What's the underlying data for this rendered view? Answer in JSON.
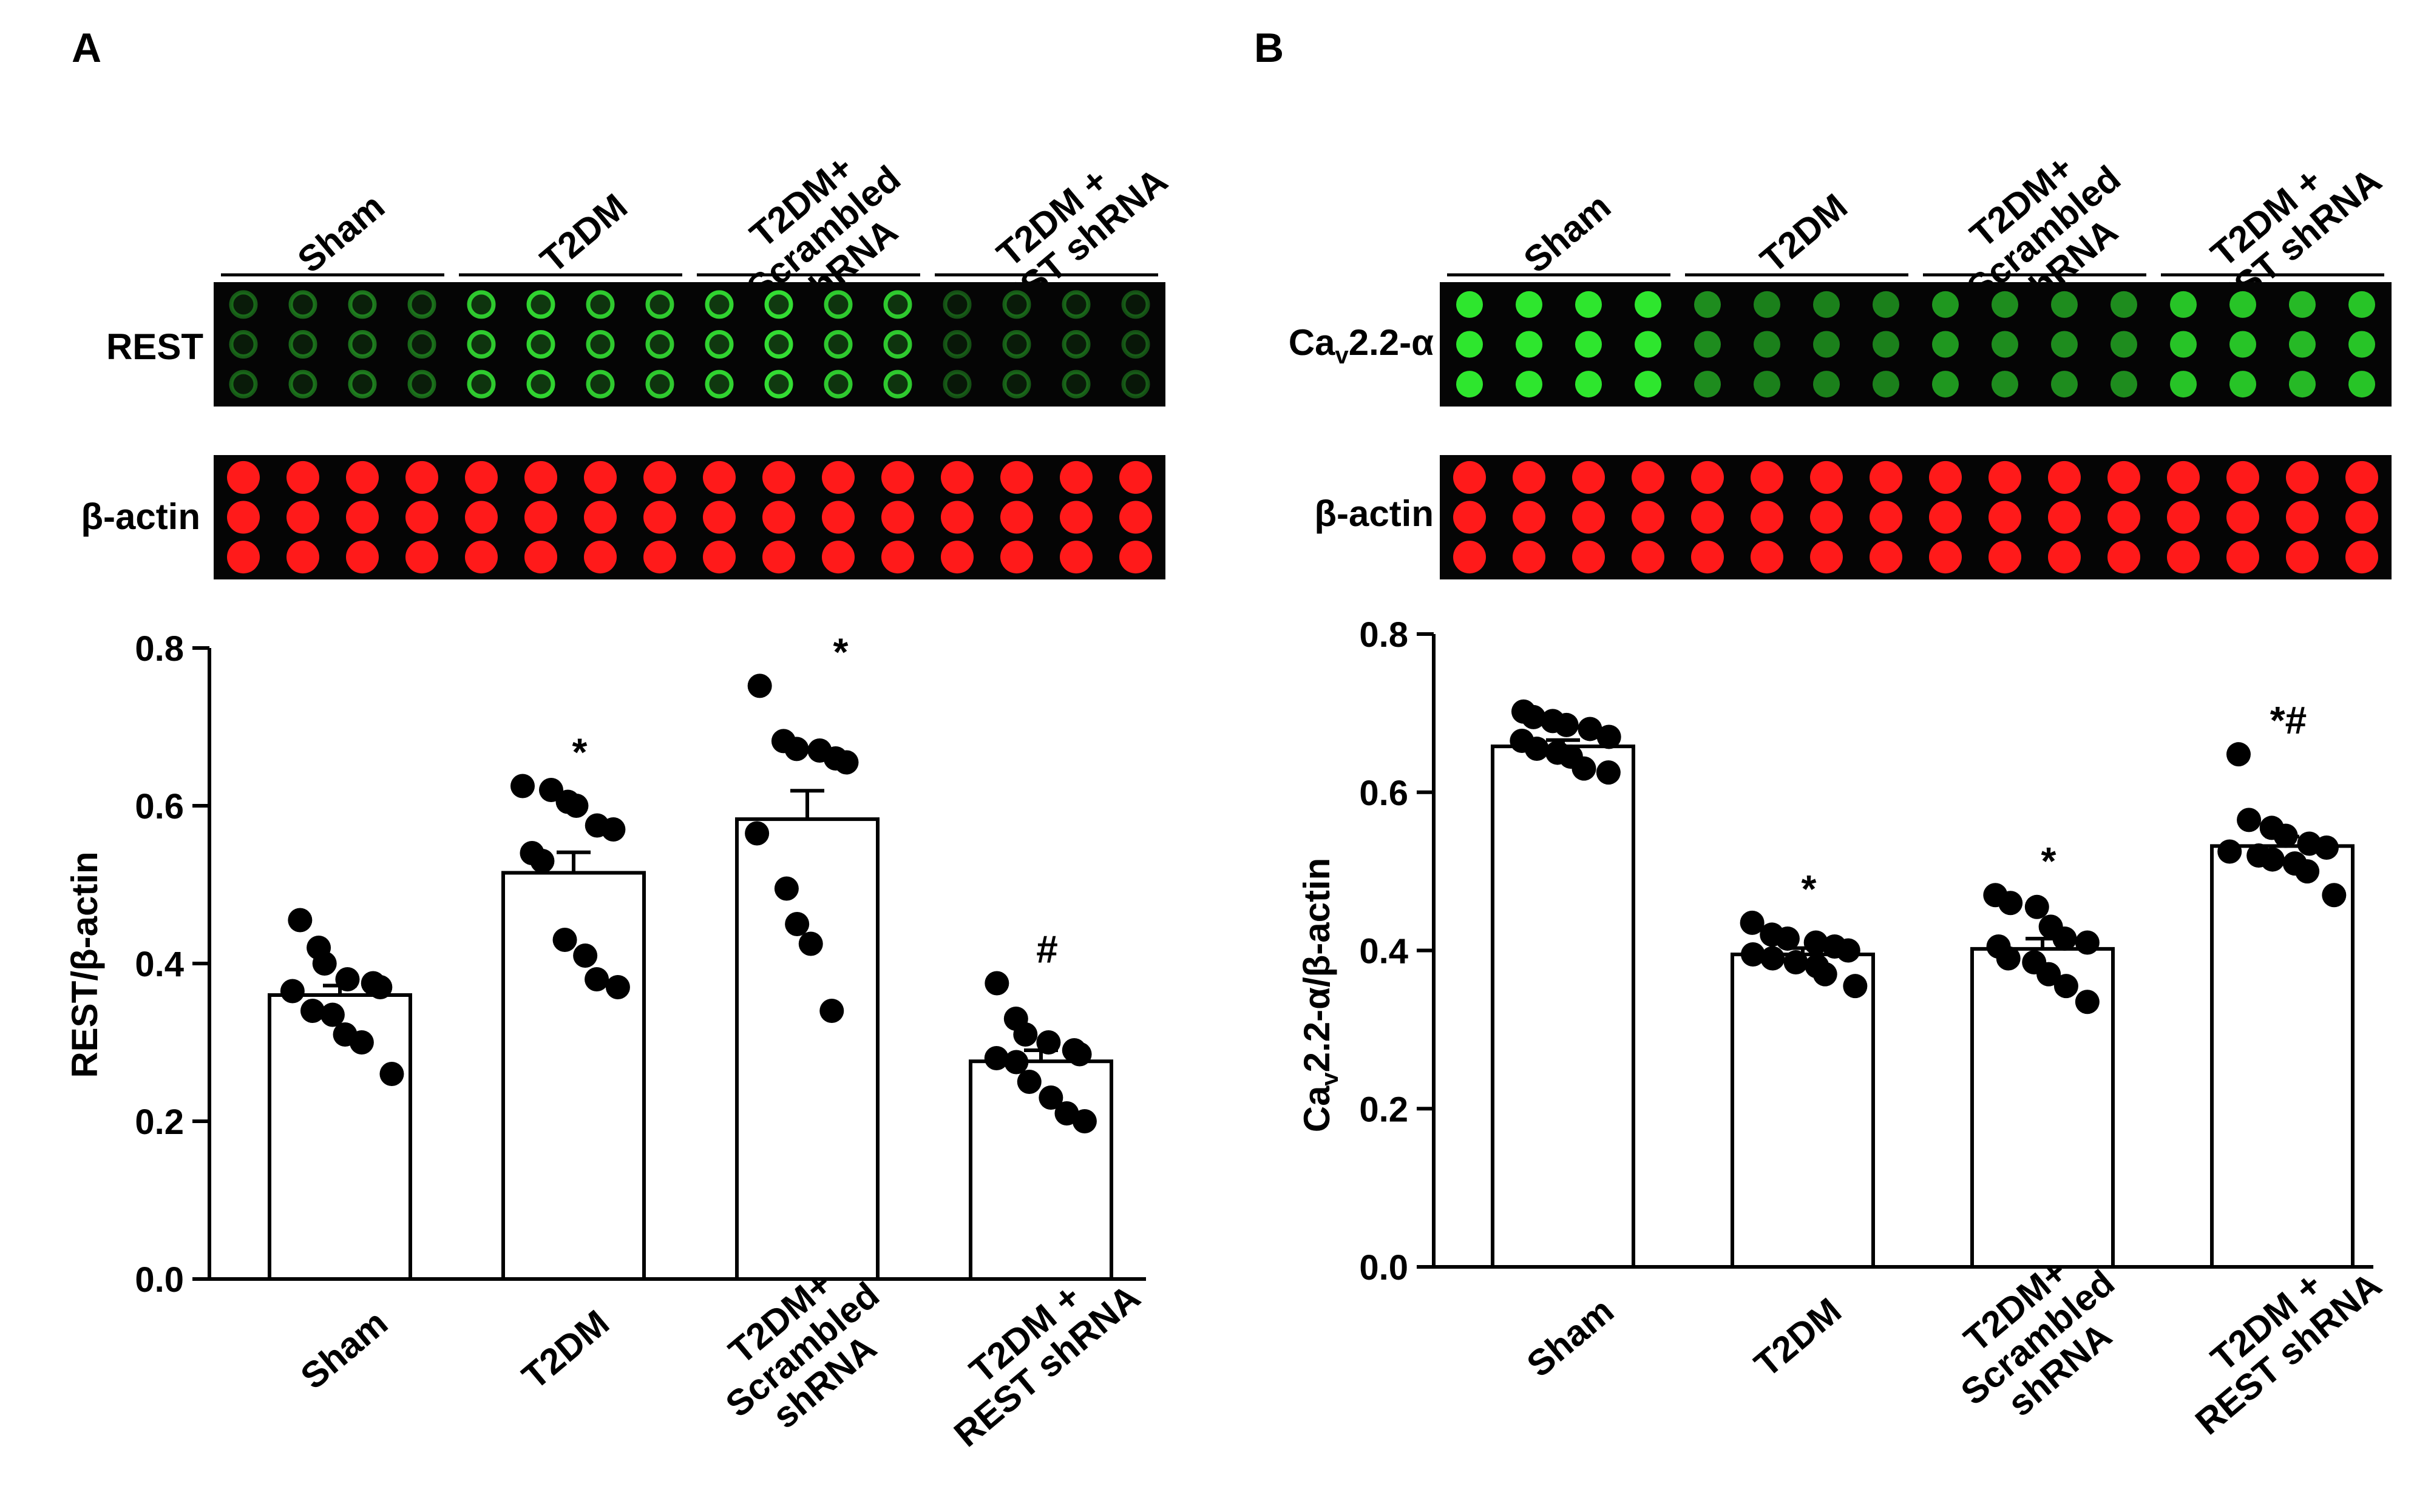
{
  "panels": [
    {
      "letter": "A",
      "groups": [
        "Sham",
        "T2DM",
        "T2DM+ Scrambled shRNA",
        "T2DM + REST shRNA"
      ],
      "blot_header_lines": [
        [
          "Sham"
        ],
        [
          "T2DM"
        ],
        [
          "T2DM+",
          "Scrambled",
          "shRNA"
        ],
        [
          "T2DM +",
          "REST shRNA"
        ]
      ],
      "blots": [
        {
          "label": "REST",
          "color": "#33dd33",
          "style": "ring",
          "intensity": [
            [
              0.4,
              0.45,
              0.5,
              0.45
            ],
            [
              0.9,
              0.95,
              0.9,
              0.9
            ],
            [
              0.95,
              1.0,
              0.9,
              0.9
            ],
            [
              0.35,
              0.4,
              0.4,
              0.35
            ]
          ]
        },
        {
          "label": "β-actin",
          "color": "#ff1a1a",
          "style": "solid",
          "intensity": [
            [
              1,
              1,
              1,
              1
            ],
            [
              1,
              1,
              1,
              1
            ],
            [
              1,
              1,
              1,
              1
            ],
            [
              1,
              1,
              1,
              1
            ]
          ]
        }
      ],
      "chart_data": {
        "type": "bar",
        "categories": [
          "Sham",
          "T2DM",
          "T2DM+ Scrambled shRNA",
          "T2DM + REST shRNA"
        ],
        "category_label_lines": [
          [
            "Sham"
          ],
          [
            "T2DM"
          ],
          [
            "T2DM+",
            "Scrambled",
            "shRNA"
          ],
          [
            "T2DM +",
            "REST shRNA"
          ]
        ],
        "values": [
          0.36,
          0.515,
          0.583,
          0.276
        ],
        "sem": [
          0.012,
          0.026,
          0.036,
          0.014
        ],
        "points": [
          [
            0.455,
            0.42,
            0.4,
            0.38,
            0.375,
            0.37,
            0.365,
            0.34,
            0.335,
            0.31,
            0.3,
            0.26
          ],
          [
            0.625,
            0.62,
            0.605,
            0.6,
            0.575,
            0.57,
            0.54,
            0.53,
            0.43,
            0.41,
            0.38,
            0.37
          ],
          [
            0.752,
            0.682,
            0.672,
            0.67,
            0.66,
            0.655,
            0.565,
            0.495,
            0.45,
            0.425,
            0.34
          ],
          [
            0.375,
            0.33,
            0.31,
            0.3,
            0.29,
            0.285,
            0.28,
            0.275,
            0.25,
            0.23,
            0.21,
            0.2
          ]
        ],
        "significance": [
          "",
          "*",
          "*",
          "#"
        ],
        "ylabel": "REST/β-actin",
        "xlabel": "",
        "ylim": [
          0,
          0.8
        ],
        "yticks": [
          "0.0",
          "0.2",
          "0.4",
          "0.6",
          "0.8"
        ],
        "ytick_values": [
          0,
          0.2,
          0.4,
          0.6,
          0.8
        ]
      }
    },
    {
      "letter": "B",
      "groups": [
        "Sham",
        "T2DM",
        "T2DM+ Scrambled shRNA",
        "T2DM + REST shRNA"
      ],
      "blot_header_lines": [
        [
          "Sham"
        ],
        [
          "T2DM"
        ],
        [
          "T2DM+",
          "Scrambled",
          "shRNA"
        ],
        [
          "T2DM +",
          "REST shRNA"
        ]
      ],
      "blots": [
        {
          "label": "Cav2.2-α",
          "label_main": "Ca",
          "label_sub": "v",
          "label_tail": "2.2-α",
          "color": "#2ee62e",
          "style": "solid",
          "intensity": [
            [
              1.0,
              1.0,
              1.0,
              1.0
            ],
            [
              0.6,
              0.55,
              0.55,
              0.55
            ],
            [
              0.65,
              0.6,
              0.6,
              0.6
            ],
            [
              0.85,
              0.85,
              0.8,
              0.85
            ]
          ]
        },
        {
          "label": "β-actin",
          "color": "#ff1a1a",
          "style": "solid",
          "intensity": [
            [
              1,
              1,
              1,
              1
            ],
            [
              1,
              1,
              1,
              1
            ],
            [
              1,
              1,
              1,
              1
            ],
            [
              1,
              1,
              1,
              1
            ]
          ]
        }
      ],
      "chart_data": {
        "type": "bar",
        "categories": [
          "Sham",
          "T2DM",
          "T2DM+ Scrambled shRNA",
          "T2DM + REST shRNA"
        ],
        "category_label_lines": [
          [
            "Sham"
          ],
          [
            "T2DM"
          ],
          [
            "T2DM+",
            "Scrambled",
            "shRNA"
          ],
          [
            "T2DM +",
            "REST shRNA"
          ]
        ],
        "values": [
          0.658,
          0.395,
          0.402,
          0.532
        ],
        "sem": [
          0.008,
          0.008,
          0.013,
          0.012
        ],
        "points": [
          [
            0.702,
            0.695,
            0.69,
            0.685,
            0.68,
            0.67,
            0.665,
            0.655,
            0.65,
            0.645,
            0.63,
            0.625
          ],
          [
            0.435,
            0.42,
            0.415,
            0.41,
            0.405,
            0.4,
            0.395,
            0.39,
            0.385,
            0.38,
            0.37,
            0.355
          ],
          [
            0.47,
            0.46,
            0.455,
            0.43,
            0.415,
            0.41,
            0.405,
            0.39,
            0.385,
            0.37,
            0.355,
            0.335
          ],
          [
            0.648,
            0.565,
            0.555,
            0.545,
            0.535,
            0.53,
            0.525,
            0.52,
            0.515,
            0.51,
            0.5,
            0.47
          ]
        ],
        "significance": [
          "",
          "*",
          "*",
          "*#"
        ],
        "ylabel": "Cav2.2-α/β-actin",
        "ylabel_main": "Ca",
        "ylabel_sub": "v",
        "ylabel_tail": "2.2-α/β-actin",
        "xlabel": "",
        "ylim": [
          0,
          0.8
        ],
        "yticks": [
          "0.0",
          "0.2",
          "0.4",
          "0.6",
          "0.8"
        ],
        "ytick_values": [
          0,
          0.2,
          0.4,
          0.6,
          0.8
        ]
      }
    }
  ]
}
